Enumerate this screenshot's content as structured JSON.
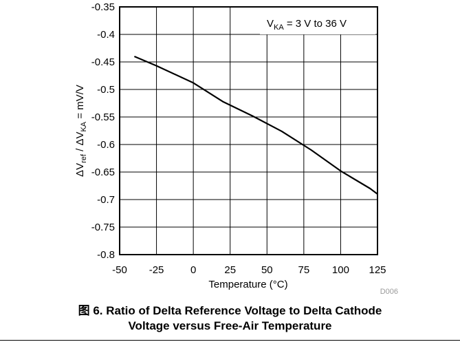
{
  "chart_data": {
    "type": "line",
    "title": "",
    "xlabel": "Temperature (°C)",
    "ylabel": {
      "prefix": "ΔV",
      "sub1": "ref",
      "mid": " / ΔV",
      "sub2": "KA",
      "suffix": " = mV/V"
    },
    "xlim": [
      -50,
      125
    ],
    "ylim": [
      -0.8,
      -0.35
    ],
    "x_ticks": [
      "-50",
      "-25",
      "0",
      "25",
      "50",
      "75",
      "100",
      "125"
    ],
    "y_ticks": [
      "-0.35",
      "-0.4",
      "-0.45",
      "-0.5",
      "-0.55",
      "-0.6",
      "-0.65",
      "-0.7",
      "-0.75",
      "-0.8"
    ],
    "grid": true,
    "annotation": {
      "prefix": "V",
      "sub": "KA",
      "suffix": " = 3 V to 36 V"
    },
    "series": [
      {
        "color": "#000000",
        "x": [
          -40,
          -25,
          0,
          20,
          40,
          60,
          80,
          100,
          120,
          125
        ],
        "y": [
          -0.44,
          -0.457,
          -0.488,
          -0.522,
          -0.548,
          -0.576,
          -0.61,
          -0.648,
          -0.68,
          -0.69
        ]
      }
    ]
  },
  "figure_code": "D006",
  "caption": {
    "line1": "图 6. Ratio of Delta Reference Voltage to Delta Cathode",
    "line2": "Voltage versus Free-Air Temperature"
  }
}
